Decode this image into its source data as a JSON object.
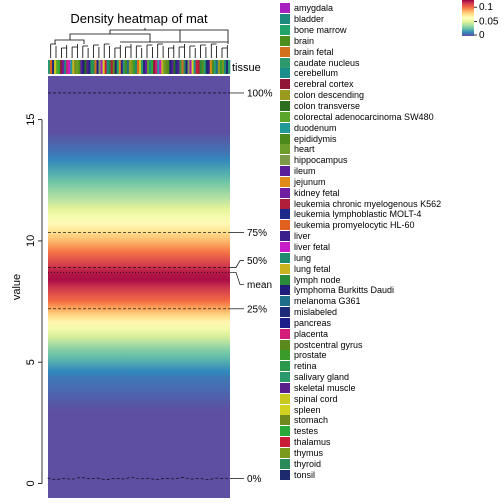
{
  "chart_data": {
    "type": "heatmap",
    "title": "Density heatmap of mat",
    "ylabel": "value",
    "ylim": [
      -0.6,
      16.8
    ],
    "y_ticks": [
      "0",
      "5",
      "10",
      "15"
    ],
    "annotation_name": "tissue",
    "quantiles": [
      {
        "label": "100%",
        "value": 16.1
      },
      {
        "label": "75%",
        "value": 10.35
      },
      {
        "label": "50%",
        "value": 8.9
      },
      {
        "label": "mean",
        "value": 8.7
      },
      {
        "label": "25%",
        "value": 7.2
      },
      {
        "label": "0%",
        "value": 0.2
      }
    ],
    "density_profile": [
      {
        "value": -0.6,
        "density": 0.0
      },
      {
        "value": 3.0,
        "density": 0.0
      },
      {
        "value": 4.5,
        "density": 0.01
      },
      {
        "value": 5.5,
        "density": 0.03
      },
      {
        "value": 6.5,
        "density": 0.06
      },
      {
        "value": 7.5,
        "density": 0.1
      },
      {
        "value": 8.5,
        "density": 0.125
      },
      {
        "value": 9.5,
        "density": 0.1
      },
      {
        "value": 10.5,
        "density": 0.07
      },
      {
        "value": 11.5,
        "density": 0.045
      },
      {
        "value": 12.5,
        "density": 0.025
      },
      {
        "value": 13.5,
        "density": 0.01
      },
      {
        "value": 14.5,
        "density": 0.0
      },
      {
        "value": 16.8,
        "density": 0.0
      }
    ],
    "color_legend": {
      "ticks": [
        "0.1",
        "0.05",
        "0"
      ],
      "max": 0.125
    },
    "tissues": [
      {
        "name": "amygdala",
        "color": "#a81fbf"
      },
      {
        "name": "bladder",
        "color": "#1c8a7c"
      },
      {
        "name": "bone marrow",
        "color": "#22a36a"
      },
      {
        "name": "brain",
        "color": "#4c8f1d"
      },
      {
        "name": "brain fetal",
        "color": "#d2701e"
      },
      {
        "name": "caudate nucleus",
        "color": "#2c9a6c"
      },
      {
        "name": "cerebellum",
        "color": "#1a8e8a"
      },
      {
        "name": "cerebral cortex",
        "color": "#8f1637"
      },
      {
        "name": "colon descending",
        "color": "#9a9a1e"
      },
      {
        "name": "colon transverse",
        "color": "#2a6e1e"
      },
      {
        "name": "colorectal adenocarcinoma SW480",
        "color": "#5aa52a"
      },
      {
        "name": "duodenum",
        "color": "#1f9a96"
      },
      {
        "name": "epididymis",
        "color": "#4d8a1c"
      },
      {
        "name": "heart",
        "color": "#6e9e2a"
      },
      {
        "name": "hippocampus",
        "color": "#7c9a4a"
      },
      {
        "name": "ileum",
        "color": "#5a1e9a"
      },
      {
        "name": "jejunum",
        "color": "#e08a1a"
      },
      {
        "name": "kidney fetal",
        "color": "#6e1e9e"
      },
      {
        "name": "leukemia chronic myelogenous K562",
        "color": "#b01e3a"
      },
      {
        "name": "leukemia lymphoblastic MOLT-4",
        "color": "#1e2a8a"
      },
      {
        "name": "leukemia promyelocytic HL-60",
        "color": "#e0601e"
      },
      {
        "name": "liver",
        "color": "#3a1e8a"
      },
      {
        "name": "liver fetal",
        "color": "#c81ec8"
      },
      {
        "name": "lung",
        "color": "#1e8a6e"
      },
      {
        "name": "lung fetal",
        "color": "#c8b41e"
      },
      {
        "name": "lymph node",
        "color": "#2a8a3a"
      },
      {
        "name": "lymphoma Burkitts Daudi",
        "color": "#1e1e7a"
      },
      {
        "name": "melanoma G361",
        "color": "#1e6e8a"
      },
      {
        "name": "mislabeled",
        "color": "#1e2a7a"
      },
      {
        "name": "pancreas",
        "color": "#1e1e8a"
      },
      {
        "name": "placenta",
        "color": "#d21e7a"
      },
      {
        "name": "postcentral gyrus",
        "color": "#5a8a1e"
      },
      {
        "name": "prostate",
        "color": "#3a9a2a"
      },
      {
        "name": "retina",
        "color": "#2a9a4a"
      },
      {
        "name": "salivary gland",
        "color": "#2a9a6a"
      },
      {
        "name": "skeletal muscle",
        "color": "#5a1e8a"
      },
      {
        "name": "spinal cord",
        "color": "#c8c81e"
      },
      {
        "name": "spleen",
        "color": "#d2d21e"
      },
      {
        "name": "stomach",
        "color": "#6e8a1e"
      },
      {
        "name": "testes",
        "color": "#2aa83a"
      },
      {
        "name": "thalamus",
        "color": "#c81e3a"
      },
      {
        "name": "thymus",
        "color": "#7a9a1e"
      },
      {
        "name": "thyroid",
        "color": "#2a8a5a"
      },
      {
        "name": "tonsil",
        "color": "#1e2a6e"
      }
    ],
    "sample_tissue_indices": [
      5,
      20,
      28,
      36,
      10,
      39,
      7,
      17,
      1,
      30,
      22,
      11,
      24,
      38,
      13,
      3,
      15,
      26,
      9,
      35,
      19,
      33,
      42,
      4,
      29,
      14,
      0,
      37,
      40,
      6,
      25,
      18,
      31,
      43,
      2,
      16,
      21,
      34,
      12,
      27,
      8,
      41,
      32,
      23,
      20,
      36,
      5,
      28,
      17,
      10,
      1,
      39,
      7,
      30,
      11,
      22,
      24,
      13,
      38,
      3,
      26,
      15,
      9,
      19,
      35,
      33,
      4,
      42,
      29,
      14,
      0,
      37,
      6,
      40,
      18,
      25,
      31,
      2,
      43,
      21,
      16,
      12,
      34,
      27,
      8,
      32,
      41,
      23,
      28,
      5
    ]
  }
}
